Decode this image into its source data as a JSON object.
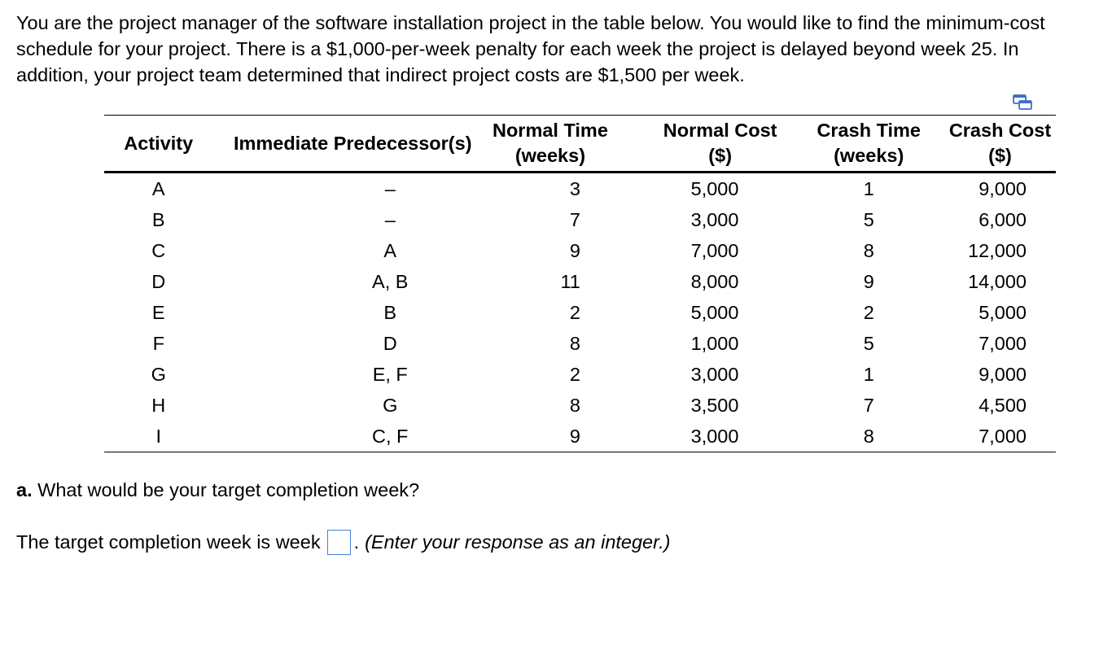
{
  "intro_text": "You are the project manager of the software installation project in the table below. You would like to find the minimum-cost schedule for your project. There is a $1,000-per-week penalty for each week the project is delayed beyond week 25. In addition, your project team determined that indirect project costs are $1,500 per week.",
  "copy_icon": "copy-to-clipboard-icon",
  "table": {
    "headers": {
      "activity": "Activity",
      "predecessors": "Immediate Predecessor(s)",
      "normal_time_1": "Normal Time",
      "normal_time_2": "(weeks)",
      "normal_cost_1": "Normal Cost",
      "normal_cost_2": "($)",
      "crash_time_1": "Crash Time",
      "crash_time_2": "(weeks)",
      "crash_cost_1": "Crash Cost",
      "crash_cost_2": "($)"
    },
    "rows": [
      {
        "activity": "A",
        "pred": "–",
        "nt": "3",
        "nc": "5,000",
        "ct": "1",
        "cc": "9,000"
      },
      {
        "activity": "B",
        "pred": "–",
        "nt": "7",
        "nc": "3,000",
        "ct": "5",
        "cc": "6,000"
      },
      {
        "activity": "C",
        "pred": "A",
        "nt": "9",
        "nc": "7,000",
        "ct": "8",
        "cc": "12,000"
      },
      {
        "activity": "D",
        "pred": "A, B",
        "nt": "11",
        "nc": "8,000",
        "ct": "9",
        "cc": "14,000"
      },
      {
        "activity": "E",
        "pred": "B",
        "nt": "2",
        "nc": "5,000",
        "ct": "2",
        "cc": "5,000"
      },
      {
        "activity": "F",
        "pred": "D",
        "nt": "8",
        "nc": "1,000",
        "ct": "5",
        "cc": "7,000"
      },
      {
        "activity": "G",
        "pred": "E, F",
        "nt": "2",
        "nc": "3,000",
        "ct": "1",
        "cc": "9,000"
      },
      {
        "activity": "H",
        "pred": "G",
        "nt": "8",
        "nc": "3,500",
        "ct": "7",
        "cc": "4,500"
      },
      {
        "activity": "I",
        "pred": "C, F",
        "nt": "9",
        "nc": "3,000",
        "ct": "8",
        "cc": "7,000"
      }
    ]
  },
  "question": {
    "label": "a.",
    "text": " What would be your target completion week?"
  },
  "answer": {
    "prefix": "The target completion week is week",
    "value": "",
    "suffix_dot": ".",
    "hint": "(Enter your response as an integer.)"
  }
}
